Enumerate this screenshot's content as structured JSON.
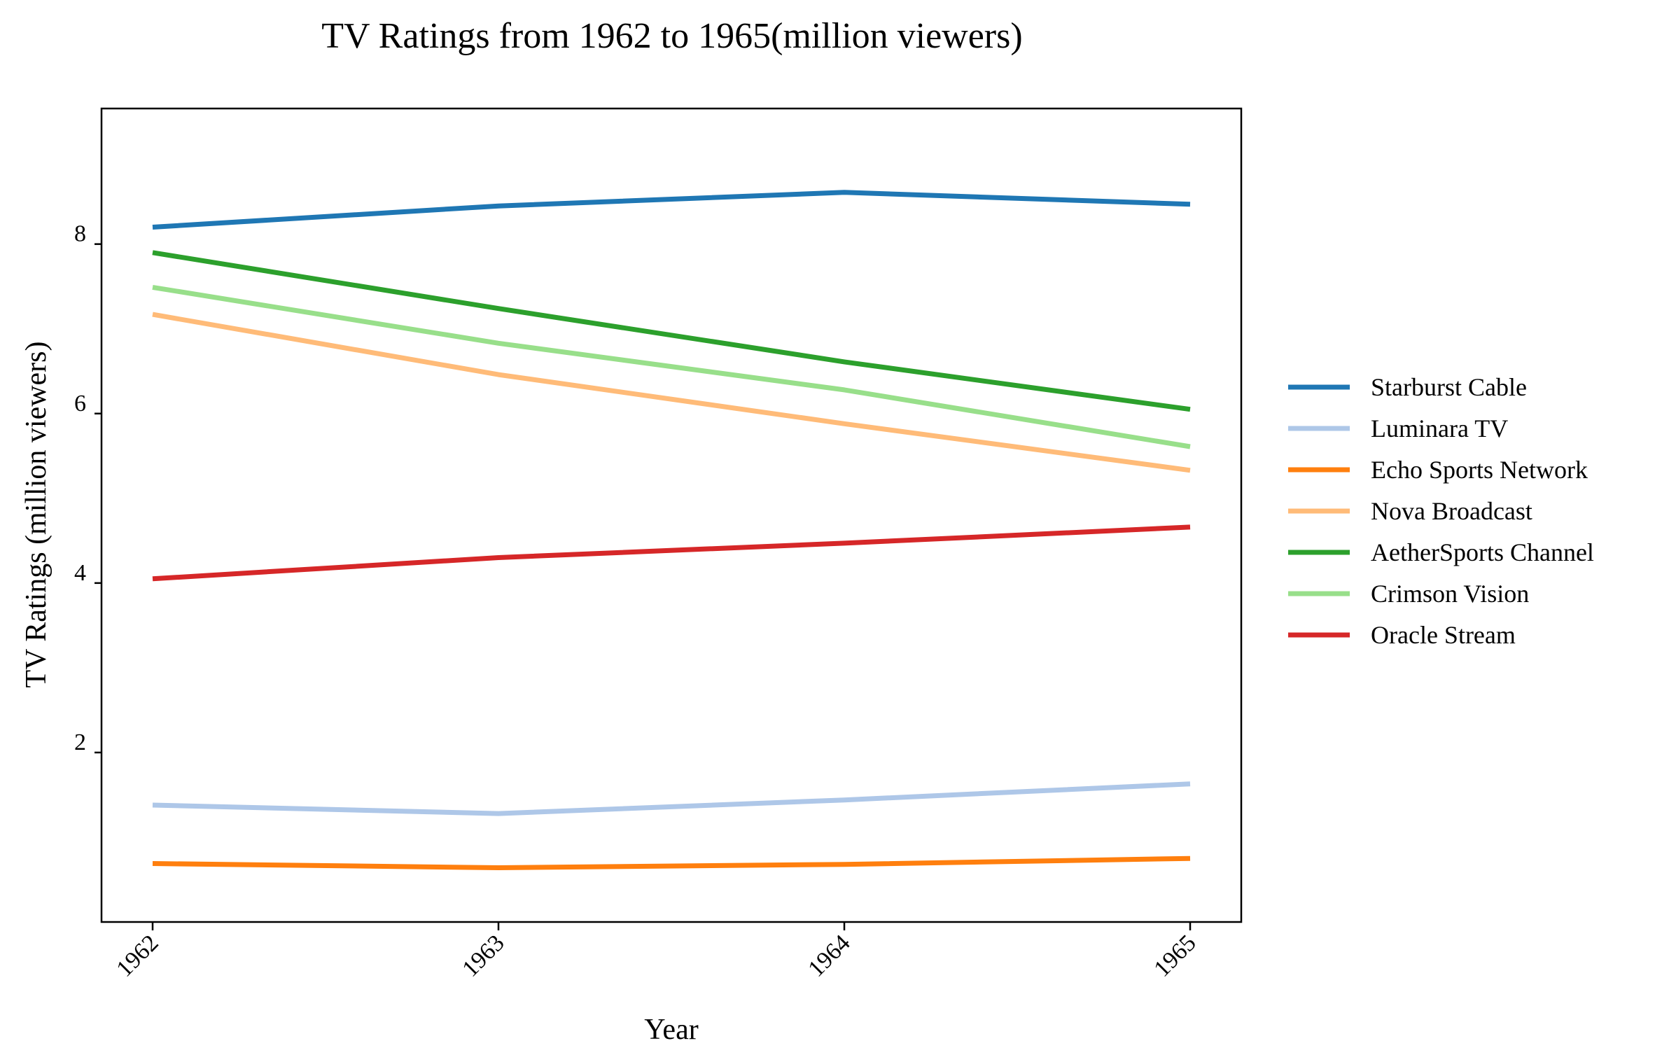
{
  "chart_data": {
    "type": "line",
    "title": "TV Ratings from 1962 to 1965(million viewers)",
    "xlabel": "Year",
    "ylabel": "TV Ratings (million viewers)",
    "categories": [
      "1962",
      "1963",
      "1964",
      "1965"
    ],
    "ylim": [
      0.0,
      9.6
    ],
    "yticks": [
      2,
      4,
      6,
      8
    ],
    "grid": false,
    "legend_position": "right",
    "series": [
      {
        "name": "Starburst Cable",
        "color": "#1f77b4",
        "values": [
          8.2,
          8.45,
          8.61,
          8.47
        ]
      },
      {
        "name": "Luminara TV",
        "color": "#aec7e8",
        "values": [
          1.38,
          1.28,
          1.44,
          1.63
        ]
      },
      {
        "name": "Echo Sports Network",
        "color": "#ff7f0e",
        "values": [
          0.69,
          0.64,
          0.68,
          0.75
        ]
      },
      {
        "name": "Nova Broadcast",
        "color": "#ffbb78",
        "values": [
          7.17,
          6.46,
          5.88,
          5.33
        ]
      },
      {
        "name": "AetherSports Channel",
        "color": "#2ca02c",
        "values": [
          7.9,
          7.24,
          6.61,
          6.05
        ]
      },
      {
        "name": "Crimson Vision",
        "color": "#98df8a",
        "values": [
          7.49,
          6.83,
          6.28,
          5.61
        ]
      },
      {
        "name": "Oracle Stream",
        "color": "#d62728",
        "values": [
          4.05,
          4.3,
          4.47,
          4.66
        ]
      }
    ]
  }
}
